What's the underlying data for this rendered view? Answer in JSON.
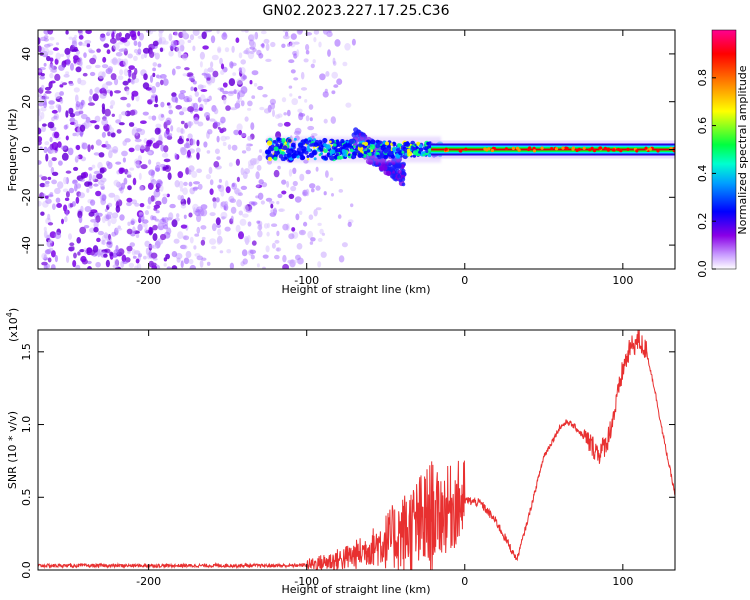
{
  "title": "GN02.2023.227.17.25.C36",
  "chart_data": [
    {
      "type": "heatmap",
      "xlabel": "Height of straight line (km)",
      "ylabel": "Frequency (Hz)",
      "xlim": [
        -270,
        133
      ],
      "ylim": [
        -50,
        50
      ],
      "xticks": [
        -200,
        -100,
        0,
        100
      ],
      "yticks": [
        -40,
        -20,
        0,
        20,
        40
      ],
      "colorbar": {
        "label": "Normalized spectral amplitude",
        "ticks": [
          "0.0",
          "0.2",
          "0.4",
          "0.6",
          "0.8"
        ],
        "tick_values": [
          0,
          0.2,
          0.4,
          0.6,
          0.8
        ],
        "range": [
          0,
          1
        ],
        "colormap": [
          "#ffffff",
          "#8a00e6",
          "#0000ff",
          "#00c8ff",
          "#00ff40",
          "#ffff00",
          "#ff8000",
          "#ff0000",
          "#ff0090"
        ]
      },
      "features": [
        {
          "kind": "scattered-noise",
          "x_range": [
            -270,
            -95
          ],
          "y_range": [
            -50,
            50
          ],
          "level": 0.1
        },
        {
          "kind": "band",
          "x_range": [
            -125,
            -15
          ],
          "y_center": 0,
          "y_halfwidth": 5,
          "level": 0.5
        },
        {
          "kind": "descending-lobe",
          "x_range": [
            -70,
            -38
          ],
          "y_range": [
            -18,
            10
          ],
          "level": 0.15
        },
        {
          "kind": "steady-line",
          "x_range": [
            -15,
            133
          ],
          "y_center": 0,
          "level": 0.9
        }
      ],
      "line_color": "#e00000"
    },
    {
      "type": "line",
      "xlabel": "Height of straight line (km)",
      "ylabel": "SNR (10 * v/v)",
      "scale_label": "(x10",
      "scale_exp": "4",
      "scale_suffix": ")",
      "xlim": [
        -270,
        133
      ],
      "ylim": [
        0,
        1.65
      ],
      "xticks": [
        -200,
        -100,
        0,
        100
      ],
      "yticks": [
        "0.0",
        "0.5",
        "1.0",
        "1.5"
      ],
      "ytick_values": [
        0,
        0.5,
        1.0,
        1.5
      ],
      "series": [
        {
          "color": "#e83030",
          "x": [
            -270,
            -250,
            -225,
            -200,
            -175,
            -150,
            -125,
            -110,
            -100,
            -90,
            -80,
            -70,
            -60,
            -50,
            -40,
            -30,
            -20,
            -10,
            0,
            10,
            20,
            30,
            33,
            40,
            50,
            60,
            65,
            70,
            80,
            85,
            90,
            95,
            100,
            105,
            110,
            115,
            120,
            125,
            133
          ],
          "y": [
            0.03,
            0.03,
            0.03,
            0.03,
            0.03,
            0.03,
            0.03,
            0.03,
            0.035,
            0.05,
            0.07,
            0.1,
            0.15,
            0.2,
            0.25,
            0.3,
            0.36,
            0.42,
            0.48,
            0.46,
            0.33,
            0.13,
            0.07,
            0.35,
            0.78,
            0.98,
            1.02,
            0.98,
            0.86,
            0.8,
            0.88,
            1.1,
            1.38,
            1.53,
            1.58,
            1.5,
            1.25,
            0.95,
            0.52
          ]
        }
      ]
    }
  ]
}
